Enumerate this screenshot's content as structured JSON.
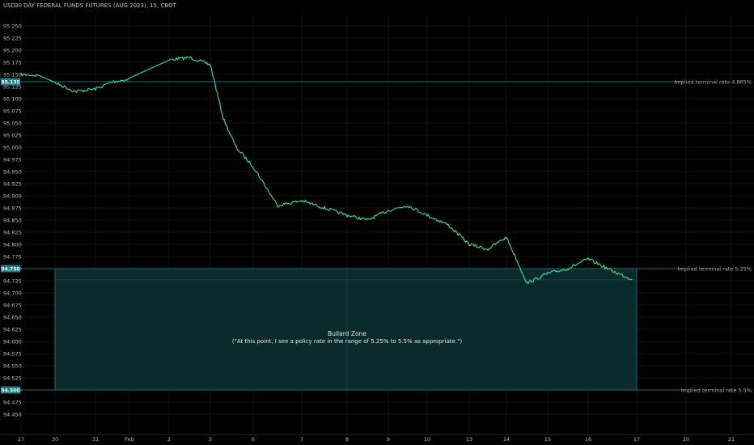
{
  "header": {
    "title": "30 DAY FEDERAL FUNDS FUTURES (AUG 2023), 15, CBOT",
    "unit": "USD"
  },
  "colors": {
    "background": "#000000",
    "price_line": "#2ee59d",
    "hline": "#1b6e72",
    "zone_fill": "#0a2a2c",
    "zone_border": "#1d6c70",
    "tag_bg": "#1b7f86",
    "axis_text": "#bdbdbd"
  },
  "chart_data": {
    "type": "line",
    "title": "30 DAY FEDERAL FUNDS FUTURES (AUG 2023), 15, CBOT",
    "ylim": [
      94.425,
      95.275
    ],
    "y_ticks": [
      "95.250",
      "95.225",
      "95.200",
      "95.175",
      "95.150",
      "95.125",
      "95.100",
      "95.075",
      "95.050",
      "95.025",
      "95.000",
      "94.975",
      "94.950",
      "94.925",
      "94.900",
      "94.875",
      "94.850",
      "94.825",
      "94.800",
      "94.775",
      "94.750",
      "94.725",
      "94.700",
      "94.675",
      "94.650",
      "94.625",
      "94.600",
      "94.575",
      "94.550",
      "94.525",
      "94.500",
      "94.475",
      "94.450"
    ],
    "x_ticks": [
      "27",
      "30",
      "31",
      "Feb",
      "2",
      "3",
      "6",
      "7",
      "8",
      "9",
      "10",
      "13",
      "14",
      "15",
      "16",
      "17",
      "20",
      "21"
    ],
    "grid": true,
    "series": [
      {
        "x": [
          "27",
          "27.5",
          "28",
          "28.5",
          "29",
          "29.5",
          "30",
          "30.5",
          "31",
          "31.5",
          "Feb",
          "Feb.5",
          "2",
          "2.5",
          "3",
          "3.3",
          "3.6",
          "6",
          "6.5",
          "7",
          "7.5",
          "8",
          "8.5",
          "9",
          "9.5",
          "10",
          "10.5",
          "13",
          "13.5",
          "14",
          "14.5",
          "15",
          "15.5",
          "16",
          "16.5",
          "16.9"
        ],
        "values": [
          95.15,
          95.148,
          95.151,
          95.145,
          95.15,
          95.14,
          95.133,
          95.115,
          95.12,
          95.135,
          95.14,
          95.142,
          95.18,
          95.185,
          95.17,
          95.06,
          95.0,
          94.96,
          94.88,
          94.89,
          94.875,
          94.86,
          94.85,
          94.87,
          94.88,
          94.86,
          94.84,
          94.8,
          94.79,
          94.815,
          94.72,
          94.74,
          94.75,
          94.77,
          94.745,
          94.728
        ]
      }
    ],
    "annotations": [
      {
        "label": "Implied terminal rate 4.865%",
        "y": 95.135,
        "tag": "95.135"
      },
      {
        "label": "Implied terminal rate 5.25%",
        "y": 94.75,
        "tag": "94.750"
      },
      {
        "label": "Implied terminal rate 5.5%",
        "y": 94.5,
        "tag": "94.500"
      }
    ],
    "zone": {
      "y_top": 94.75,
      "y_bottom": 94.5,
      "x_start": "30",
      "x_end": "17",
      "label_line1": "Bullard Zone",
      "label_line2": "(\"At this point, I see a policy rate in the range of 5.25% to 5.5% as appropriate.\")"
    }
  }
}
